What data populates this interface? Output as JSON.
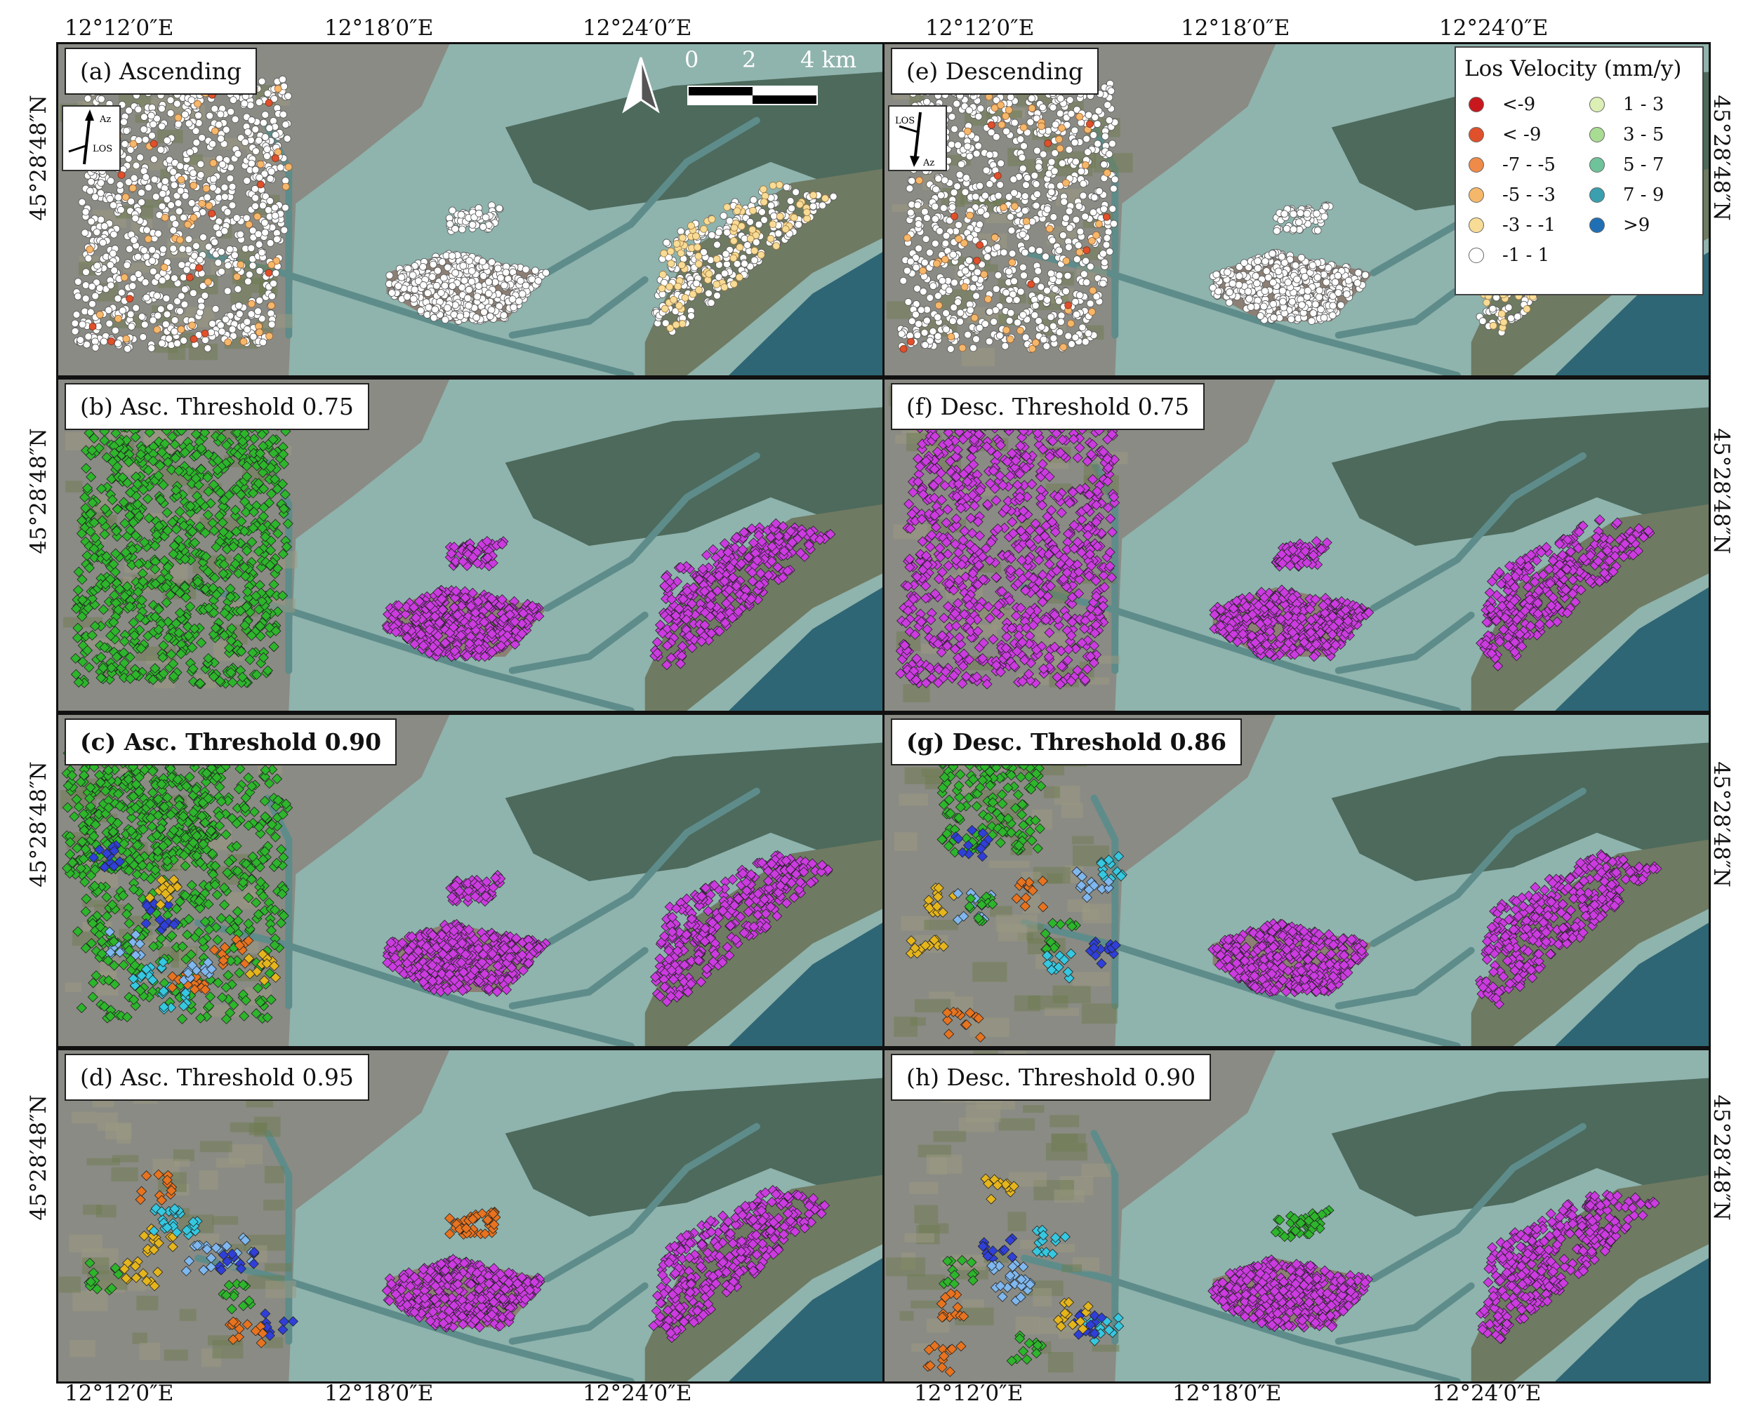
{
  "lon_labels_top": [
    "12°12′0″E",
    "12°18′0″E",
    "12°24′0″E"
  ],
  "lon_labels_bottom": [
    "12°12′0″E",
    "12°18′0″E",
    "12°24′0″E"
  ],
  "lat_label": "45°28′48″N",
  "panels": [
    {
      "label": "(a) Ascending",
      "bold": false,
      "mode": "velocity"
    },
    {
      "label": "(b) Asc. Threshold 0.75",
      "bold": false,
      "mode": "cluster-b"
    },
    {
      "label": "(c) Asc. Threshold 0.90",
      "bold": true,
      "mode": "cluster-c"
    },
    {
      "label": "(d) Asc. Threshold 0.95",
      "bold": false,
      "mode": "cluster-d"
    },
    {
      "label": "(e) Descending",
      "bold": false,
      "mode": "velocity"
    },
    {
      "label": "(f) Desc. Threshold 0.75",
      "bold": false,
      "mode": "cluster-f"
    },
    {
      "label": "(g) Desc. Threshold 0.86",
      "bold": true,
      "mode": "cluster-g"
    },
    {
      "label": "(h) Desc. Threshold 0.90",
      "bold": false,
      "mode": "cluster-h"
    }
  ],
  "scale_bar": {
    "labels": [
      "0",
      "2",
      "4 km"
    ]
  },
  "north_arrow": "north-arrow-icon",
  "az_ascending": {
    "az": "Az",
    "los": "LOS"
  },
  "az_descending": {
    "az": "Az",
    "los": "LOS"
  },
  "legend": {
    "title": "Los Velocity (mm/y)",
    "items": [
      {
        "label": "<-9",
        "color": "#c8181e"
      },
      {
        "label": "< -9",
        "color": "#e0502a"
      },
      {
        "label": "-7 - -5",
        "color": "#f08a48"
      },
      {
        "label": "-5 - -3",
        "color": "#f5b86b"
      },
      {
        "label": "-3 - -1",
        "color": "#f8dc96"
      },
      {
        "label": "-1 - 1",
        "color": "#ffffff"
      },
      {
        "label": "1 - 3",
        "color": "#dcefb4"
      },
      {
        "label": "3 - 5",
        "color": "#a9dc93"
      },
      {
        "label": "5 - 7",
        "color": "#6fc39a"
      },
      {
        "label": "7 - 9",
        "color": "#3a9fae"
      },
      {
        "label": ">9",
        "color": "#1f6fb5"
      }
    ]
  },
  "colors": {
    "land_city": "#8a8b84",
    "water": "#5e8c8a",
    "lagoon_light": "#8fb3ad",
    "cluster_green": "#2db52b",
    "cluster_magenta": "#cc3be0",
    "cluster_blue": "#2f3fd8",
    "cluster_orange": "#e8731f",
    "cluster_cyan": "#35c8e0",
    "cluster_yellow": "#e5b51c",
    "cluster_lightblue": "#7fb7ee"
  }
}
